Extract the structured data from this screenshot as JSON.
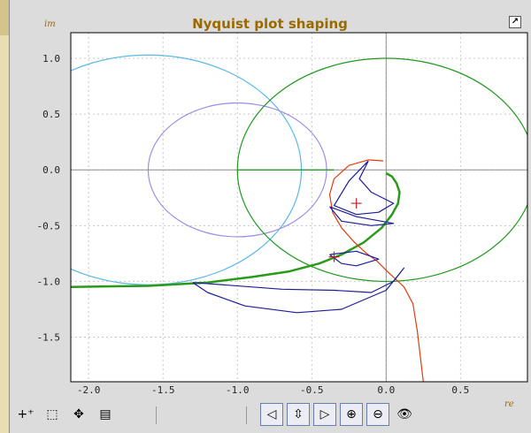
{
  "window": {
    "title": "Nyquist plot shaping",
    "maximize_glyph": "↗"
  },
  "axes": {
    "y_axis_label": "im",
    "x_axis_label": "re",
    "x_ticks": [
      "-2.0",
      "-1.5",
      "-1.0",
      "-0.5",
      "0.0",
      "0.5"
    ],
    "y_ticks": [
      "1.0",
      "0.5",
      "0.0",
      "-0.5",
      "-1.0",
      "-1.5"
    ]
  },
  "toolbar": {
    "left_tools": [
      {
        "name": "add-point-tool",
        "icon": "plus-icon",
        "glyph": "+⁺"
      },
      {
        "name": "select-tool",
        "icon": "selection-arrow-icon",
        "glyph": "⬚"
      },
      {
        "name": "pan-tool",
        "icon": "move-arrows-icon",
        "glyph": "✥"
      },
      {
        "name": "save-menu",
        "icon": "floppy-dropdown-icon",
        "glyph": "▤"
      }
    ],
    "nav_tools": [
      {
        "name": "back-button",
        "icon": "triangle-left-icon",
        "glyph": "◁"
      },
      {
        "name": "fit-button",
        "icon": "fit-view-icon",
        "glyph": "⇳"
      },
      {
        "name": "forward-button",
        "icon": "triangle-right-icon",
        "glyph": "▷"
      },
      {
        "name": "zoom-in-button",
        "icon": "zoom-in-icon",
        "glyph": "⊕"
      },
      {
        "name": "zoom-out-button",
        "icon": "zoom-out-icon",
        "glyph": "⊖"
      },
      {
        "name": "find-button",
        "icon": "binoculars-icon",
        "glyph": "👁"
      }
    ]
  },
  "colors": {
    "grid": "#c8c8c8",
    "axis": "#909090",
    "cyan_circle": "#5ab8e8",
    "purple_circle": "#a08ce8",
    "green_circle": "#1e9a1e",
    "nyquist_curve": "#2a9a1a",
    "blue_curves": "#1c1c9a",
    "red_curve": "#e03c10",
    "title": "#9a6a00"
  },
  "chart_data": {
    "type": "line",
    "title": "Nyquist plot shaping",
    "xlabel": "re",
    "ylabel": "im",
    "xlim": [
      -2.12,
      0.95
    ],
    "ylim": [
      -1.9,
      1.23
    ],
    "grid": true,
    "series": [
      {
        "kind": "circle",
        "color": "#5ab8e8",
        "center": [
          -1.6,
          0.0
        ],
        "radius": 1.03
      },
      {
        "kind": "circle",
        "color": "#a08ce8",
        "center": [
          -1.0,
          0.0
        ],
        "radius": 0.6
      },
      {
        "kind": "circle",
        "color": "#1e9a1e",
        "center": [
          0.0,
          0.0
        ],
        "radius": 1.0
      },
      {
        "kind": "line",
        "color": "#1e9a1e",
        "points": [
          [
            -1.0,
            0.0
          ],
          [
            -0.35,
            0.0
          ]
        ]
      },
      {
        "kind": "polyline",
        "color": "#2a9a1a",
        "width": 2.5,
        "points": [
          [
            -2.12,
            -1.05
          ],
          [
            -1.6,
            -1.04
          ],
          [
            -1.2,
            -1.01
          ],
          [
            -0.9,
            -0.96
          ],
          [
            -0.65,
            -0.91
          ],
          [
            -0.45,
            -0.84
          ],
          [
            -0.3,
            -0.76
          ],
          [
            -0.15,
            -0.65
          ],
          [
            -0.03,
            -0.52
          ],
          [
            0.04,
            -0.4
          ],
          [
            0.08,
            -0.3
          ],
          [
            0.09,
            -0.2
          ],
          [
            0.07,
            -0.12
          ],
          [
            0.04,
            -0.06
          ],
          [
            0.0,
            -0.03
          ]
        ]
      },
      {
        "kind": "polyline",
        "color": "#e03c10",
        "points": [
          [
            -0.02,
            0.08
          ],
          [
            -0.12,
            0.09
          ],
          [
            -0.25,
            0.04
          ],
          [
            -0.35,
            -0.08
          ],
          [
            -0.38,
            -0.22
          ],
          [
            -0.36,
            -0.38
          ],
          [
            -0.3,
            -0.52
          ],
          [
            -0.22,
            -0.64
          ],
          [
            -0.14,
            -0.74
          ],
          [
            -0.06,
            -0.82
          ],
          [
            0.0,
            -0.9
          ],
          [
            0.12,
            -1.05
          ],
          [
            0.18,
            -1.2
          ],
          [
            0.21,
            -1.45
          ],
          [
            0.25,
            -1.9
          ]
        ]
      },
      {
        "kind": "polyline",
        "color": "#1c1c9a",
        "points": [
          [
            -0.12,
            0.08
          ],
          [
            -0.25,
            -0.1
          ],
          [
            -0.35,
            -0.32
          ],
          [
            -0.2,
            -0.4
          ],
          [
            -0.05,
            -0.38
          ],
          [
            0.05,
            -0.3
          ],
          [
            -0.1,
            -0.2
          ],
          [
            -0.18,
            -0.08
          ],
          [
            -0.12,
            0.08
          ]
        ]
      },
      {
        "kind": "polyline",
        "color": "#1c1c9a",
        "points": [
          [
            -0.38,
            -0.33
          ],
          [
            -0.2,
            -0.42
          ],
          [
            0.05,
            -0.48
          ],
          [
            -0.1,
            -0.5
          ],
          [
            -0.3,
            -0.46
          ],
          [
            -0.38,
            -0.33
          ]
        ]
      },
      {
        "kind": "polyline",
        "color": "#1c1c9a",
        "points": [
          [
            -0.38,
            -0.76
          ],
          [
            -0.2,
            -0.73
          ],
          [
            -0.05,
            -0.8
          ],
          [
            -0.2,
            -0.86
          ],
          [
            -0.3,
            -0.84
          ],
          [
            -0.38,
            -0.76
          ]
        ]
      },
      {
        "kind": "polyline",
        "color": "#1c1c9a",
        "points": [
          [
            -1.3,
            -1.01
          ],
          [
            -0.7,
            -1.07
          ],
          [
            -0.35,
            -1.08
          ],
          [
            -0.1,
            -1.1
          ],
          [
            0.05,
            -1.0
          ],
          [
            0.12,
            -0.88
          ],
          [
            0.0,
            -1.08
          ],
          [
            -0.3,
            -1.25
          ],
          [
            -0.6,
            -1.28
          ],
          [
            -0.95,
            -1.22
          ],
          [
            -1.2,
            -1.1
          ],
          [
            -1.3,
            -1.01
          ]
        ]
      }
    ],
    "markers": [
      {
        "kind": "plus",
        "color": "#c02020",
        "at": [
          -0.2,
          -0.3
        ]
      },
      {
        "kind": "plus",
        "color": "#c02020",
        "at": [
          -0.35,
          -0.78
        ]
      }
    ]
  }
}
